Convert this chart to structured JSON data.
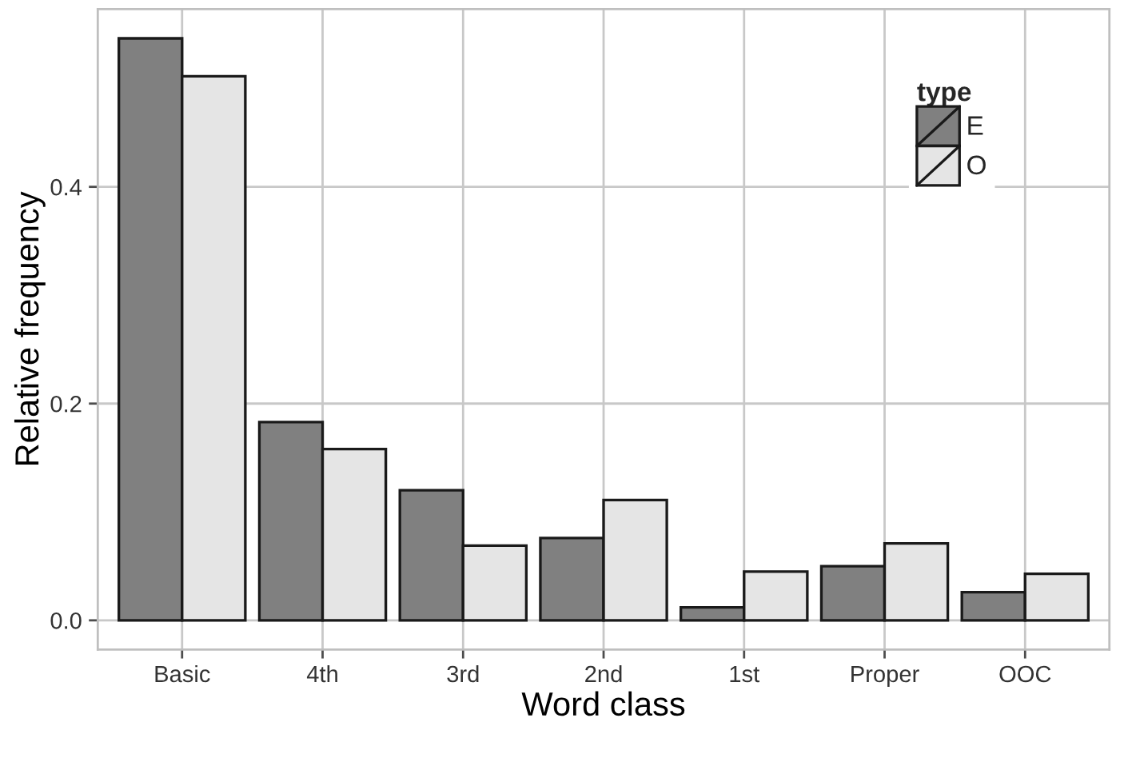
{
  "chart_data": {
    "type": "bar",
    "xlabel": "Word class",
    "ylabel": "Relative frequency",
    "legend_title": "type",
    "categories": [
      "Basic",
      "4th",
      "3rd",
      "2nd",
      "1st",
      "Proper",
      "OOC"
    ],
    "series": [
      {
        "name": "E",
        "color": "#808080",
        "values": [
          0.537,
          0.183,
          0.12,
          0.076,
          0.012,
          0.05,
          0.026
        ]
      },
      {
        "name": "O",
        "color": "#e5e5e5",
        "values": [
          0.502,
          0.158,
          0.069,
          0.111,
          0.045,
          0.071,
          0.043
        ]
      }
    ],
    "ylim": [
      -0.027,
      0.564
    ],
    "yticks": [
      {
        "value": 0,
        "label": "0.0"
      },
      {
        "value": 0.2,
        "label": "0.2"
      },
      {
        "value": 0.4,
        "label": "0.4"
      }
    ],
    "grid": true,
    "legend": "top right"
  }
}
